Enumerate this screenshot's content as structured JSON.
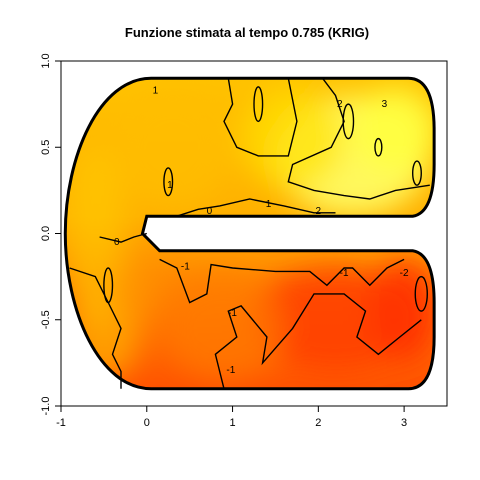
{
  "chart_data": {
    "type": "heatmap",
    "title": "Funzione stimata al tempo 0.785 (KRIG)",
    "xlabel": "",
    "ylabel": "",
    "xlim": [
      -1,
      3.5
    ],
    "ylim": [
      -1,
      1
    ],
    "x_ticks": [
      -1,
      0,
      1,
      2,
      3
    ],
    "y_ticks": [
      -1.0,
      -0.5,
      0.0,
      0.5,
      1.0
    ],
    "x_tick_labels": [
      "-1",
      "0",
      "1",
      "2",
      "3"
    ],
    "y_tick_labels": [
      "-1.0",
      "-0.5",
      "0.0",
      "0.5",
      "1.0"
    ],
    "grid": false,
    "colormap": "heat",
    "colors": {
      "low": "#ff3c00",
      "mid": "#ffb000",
      "high": "#ffff66",
      "boundary": "#000000"
    },
    "domain": "C-shaped region: outer boundary from x=0 to x=3.0 at y=±0.9 with semicircular ends; inner slot along y=0 between x=0 and x=3.1, width 0.2",
    "contour_levels": [
      -2,
      -1,
      0,
      1,
      2,
      3
    ],
    "contour_labels": [
      {
        "text": "1",
        "x": 0.1,
        "y": 0.83
      },
      {
        "text": "2",
        "x": 2.25,
        "y": 0.75
      },
      {
        "text": "3",
        "x": 2.77,
        "y": 0.75
      },
      {
        "text": "1",
        "x": 0.27,
        "y": 0.28
      },
      {
        "text": "0",
        "x": 0.73,
        "y": 0.13
      },
      {
        "text": "1",
        "x": 1.42,
        "y": 0.17
      },
      {
        "text": "2",
        "x": 2.0,
        "y": 0.13
      },
      {
        "text": "0",
        "x": -0.35,
        "y": -0.05
      },
      {
        "text": "-1",
        "x": 0.45,
        "y": -0.19
      },
      {
        "text": "-1",
        "x": 2.3,
        "y": -0.23
      },
      {
        "text": "-2",
        "x": 3.0,
        "y": -0.23
      },
      {
        "text": "-1",
        "x": 1.0,
        "y": -0.46
      },
      {
        "text": "-1",
        "x": 0.98,
        "y": -0.79
      }
    ]
  }
}
